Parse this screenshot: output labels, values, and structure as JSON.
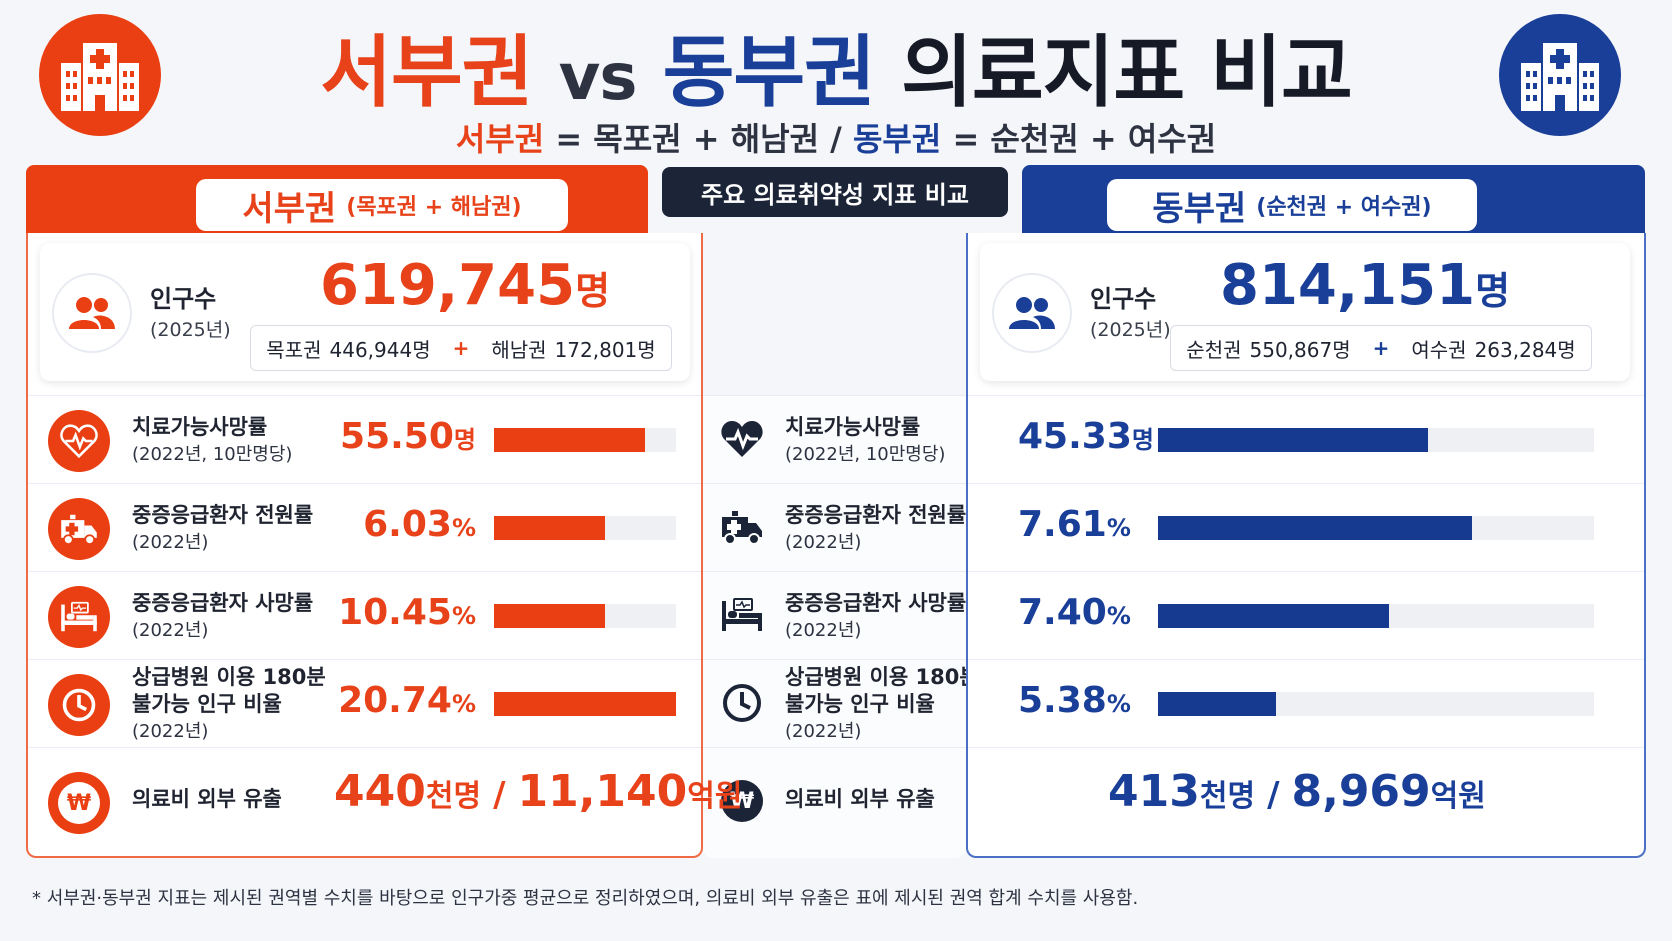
{
  "header": {
    "title_west": "서부권",
    "title_vs": "vs",
    "title_east": "동부권",
    "title_rest": "의료지표 비교",
    "sub_west": "서부권",
    "sub_west_def": "= 목포권 + 해남권 /",
    "sub_east": "동부권",
    "sub_east_def": "= 순천권 + 여수권",
    "left_logo_icon": "hospital-icon",
    "right_logo_icon": "hospital-icon"
  },
  "center_tag": "주요 의료취약성 지표 비교",
  "colors": {
    "west": "#ea3f12",
    "east": "#1a3f99",
    "dark": "#1c2437"
  },
  "west": {
    "banner_name": "서부권",
    "banner_sub": "(목포권 + 해남권)",
    "population_label": "인구수",
    "population_year": "(2025년)",
    "population_value": "619,745",
    "population_unit": "명",
    "break_a_name": "목포권",
    "break_a_value": "446,944명",
    "break_plus": "+",
    "break_b_name": "해남권",
    "break_b_value": "172,801명",
    "metrics": [
      {
        "value": "55.50",
        "unit": "명",
        "bar_fraction": 0.83
      },
      {
        "value": "6.03",
        "unit": "%",
        "bar_fraction": 0.61
      },
      {
        "value": "10.45",
        "unit": "%",
        "bar_fraction": 0.61
      },
      {
        "value": "20.74",
        "unit": "%",
        "bar_fraction": 1.0
      }
    ],
    "outflow_people": "440",
    "outflow_people_unit": "천명",
    "outflow_sep": "/",
    "outflow_cost": "11,140",
    "outflow_cost_unit": "억원"
  },
  "east": {
    "banner_name": "동부권",
    "banner_sub": "(순천권 + 여수권)",
    "population_label": "인구수",
    "population_year": "(2025년)",
    "population_value": "814,151",
    "population_unit": "명",
    "break_a_name": "순천권",
    "break_a_value": "550,867명",
    "break_plus": "+",
    "break_b_name": "여수권",
    "break_b_value": "263,284명",
    "metrics": [
      {
        "value": "45.33",
        "unit": "명",
        "bar_fraction": 0.62
      },
      {
        "value": "7.61",
        "unit": "%",
        "bar_fraction": 0.72
      },
      {
        "value": "7.40",
        "unit": "%",
        "bar_fraction": 0.53
      },
      {
        "value": "5.38",
        "unit": "%",
        "bar_fraction": 0.27
      }
    ],
    "outflow_people": "413",
    "outflow_people_unit": "천명",
    "outflow_sep": "/",
    "outflow_cost": "8,969",
    "outflow_cost_unit": "억원"
  },
  "metric_labels": [
    {
      "title": "치료가능사망률",
      "sub": "(2022년, 10만명당)",
      "icon": "heart-pulse-icon"
    },
    {
      "title": "중증응급환자 전원률",
      "sub": "(2022년)",
      "icon": "ambulance-icon"
    },
    {
      "title": "중증응급환자 사망률",
      "sub": "(2022년)",
      "icon": "hospital-bed-icon"
    },
    {
      "title": "상급병원 이용 180분",
      "title2": "불가능 인구 비율",
      "sub": "(2022년)",
      "icon": "clock-icon"
    },
    {
      "title": "의료비 외부 유출",
      "icon": "won-coin-icon"
    }
  ],
  "won_symbol": "₩",
  "footnote": "* 서부권·동부권 지표는 제시된 권역별 수치를 바탕으로 인구가중 평균으로 정리하였으며, 의료비 외부 유출은 표에 제시된 권역 합계 수치를 사용함."
}
